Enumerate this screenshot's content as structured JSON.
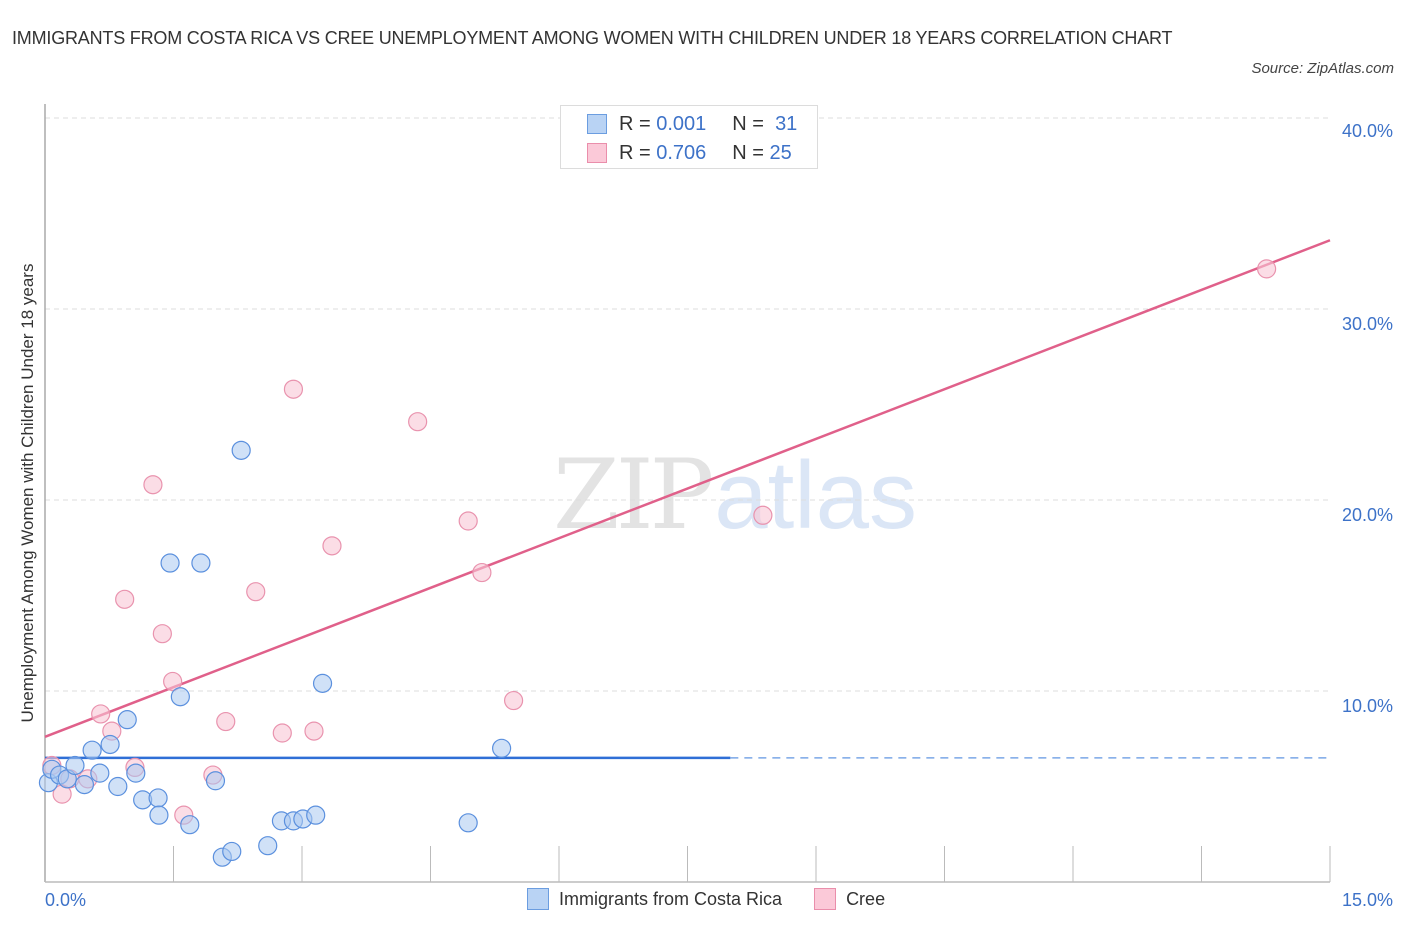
{
  "header": {
    "title": "IMMIGRANTS FROM COSTA RICA VS CREE UNEMPLOYMENT AMONG WOMEN WITH CHILDREN UNDER 18 YEARS CORRELATION CHART",
    "source": "Source: ZipAtlas.com"
  },
  "watermark": {
    "zip": "ZIP",
    "atlas": "atlas"
  },
  "stats_legend": {
    "rows": [
      {
        "series": "Immigrants from Costa Rica",
        "r_label": "R =",
        "r_value": "0.001",
        "n_label": "N =",
        "n_value": "31",
        "color": "#a9c8f0"
      },
      {
        "series": "Cree",
        "r_label": "R =",
        "r_value": "0.706",
        "n_label": "N =",
        "n_value": "25",
        "color": "#f7bccf"
      }
    ]
  },
  "axes": {
    "y_label": "Unemployment Among Women with Children Under 18 years",
    "y_ticks": [
      "40.0%",
      "30.0%",
      "20.0%",
      "10.0%"
    ],
    "x_ticks": [
      "0.0%",
      "15.0%"
    ]
  },
  "legend": {
    "items": [
      {
        "label": "Immigrants from Costa Rica",
        "color": "#a9c8f0",
        "border": "#6b9de0"
      },
      {
        "label": "Cree",
        "color": "#f7bccf",
        "border": "#ea8eab"
      }
    ]
  },
  "colors": {
    "blue_line": "#2f6fd6",
    "pink_line": "#e0608a",
    "blue_fill": "#a9c8f0",
    "blue_stroke": "#5b90de",
    "pink_fill": "#f9c6d5",
    "pink_stroke": "#e993ae",
    "tick_label": "#3d72c8"
  },
  "chart_data": {
    "type": "scatter",
    "title": "IMMIGRANTS FROM COSTA RICA VS CREE UNEMPLOYMENT AMONG WOMEN WITH CHILDREN UNDER 18 YEARS CORRELATION CHART",
    "xlabel": "",
    "ylabel": "Unemployment Among Women with Children Under 18 years",
    "xlim": [
      0,
      15
    ],
    "ylim": [
      0,
      40
    ],
    "x_unit": "%",
    "y_unit": "%",
    "grid": true,
    "legend_position": "bottom",
    "series": [
      {
        "name": "Immigrants from Costa Rica",
        "R": 0.001,
        "N": 31,
        "trend": {
          "x0": 0,
          "y0": 6.5,
          "x1": 8.0,
          "y1": 6.5,
          "dashed_extension_to": 15
        },
        "points": [
          [
            0.04,
            5.2
          ],
          [
            0.08,
            5.9
          ],
          [
            0.17,
            5.6
          ],
          [
            0.26,
            5.4
          ],
          [
            0.35,
            6.1
          ],
          [
            0.46,
            5.1
          ],
          [
            0.55,
            6.9
          ],
          [
            0.64,
            5.7
          ],
          [
            0.76,
            7.2
          ],
          [
            0.85,
            5.0
          ],
          [
            0.96,
            8.5
          ],
          [
            1.06,
            5.7
          ],
          [
            1.14,
            4.3
          ],
          [
            1.32,
            4.4
          ],
          [
            1.33,
            3.5
          ],
          [
            1.46,
            16.7
          ],
          [
            1.58,
            9.7
          ],
          [
            1.69,
            3.0
          ],
          [
            1.82,
            16.7
          ],
          [
            1.99,
            5.3
          ],
          [
            2.07,
            1.3
          ],
          [
            2.18,
            1.6
          ],
          [
            2.29,
            22.6
          ],
          [
            2.6,
            1.9
          ],
          [
            2.76,
            3.2
          ],
          [
            2.9,
            3.2
          ],
          [
            3.01,
            3.3
          ],
          [
            3.16,
            3.5
          ],
          [
            3.24,
            10.4
          ],
          [
            4.94,
            3.1
          ],
          [
            5.33,
            7.0
          ]
        ]
      },
      {
        "name": "Cree",
        "R": 0.706,
        "N": 25,
        "trend": {
          "x0": 0,
          "y0": 7.6,
          "x1": 15,
          "y1": 33.6
        },
        "points": [
          [
            0.08,
            6.1
          ],
          [
            0.2,
            4.6
          ],
          [
            0.29,
            5.4
          ],
          [
            0.5,
            5.4
          ],
          [
            0.65,
            8.8
          ],
          [
            0.78,
            7.9
          ],
          [
            0.93,
            14.8
          ],
          [
            1.05,
            6.0
          ],
          [
            1.26,
            20.8
          ],
          [
            1.37,
            13.0
          ],
          [
            1.49,
            10.5
          ],
          [
            1.62,
            3.5
          ],
          [
            1.96,
            5.6
          ],
          [
            2.11,
            8.4
          ],
          [
            2.46,
            15.2
          ],
          [
            2.77,
            7.8
          ],
          [
            2.9,
            25.8
          ],
          [
            3.14,
            7.9
          ],
          [
            3.35,
            17.6
          ],
          [
            4.35,
            24.1
          ],
          [
            4.94,
            18.9
          ],
          [
            5.1,
            16.2
          ],
          [
            5.47,
            9.5
          ],
          [
            8.38,
            19.2
          ],
          [
            14.26,
            32.1
          ]
        ]
      }
    ]
  }
}
